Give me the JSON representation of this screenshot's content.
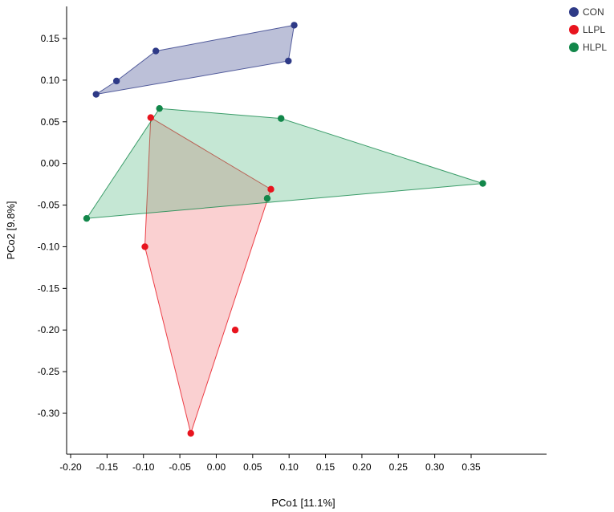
{
  "chart_data": {
    "type": "scatter",
    "xlabel": "PCo1 [11.1%]",
    "ylabel": "PCo2 [9.8%]",
    "xlim": [
      -0.205,
      0.395
    ],
    "ylim": [
      -0.348,
      0.19
    ],
    "x_ticks": [
      -0.2,
      -0.15,
      -0.1,
      -0.05,
      0.0,
      0.05,
      0.1,
      0.15,
      0.2,
      0.25,
      0.3,
      0.35
    ],
    "x_tick_labels": [
      "-0.20",
      "-0.15",
      "-0.10",
      "-0.05",
      "0.00",
      "0.05",
      "0.10",
      "0.15",
      "0.20",
      "0.25",
      "0.30",
      "0.35"
    ],
    "y_ticks": [
      0.15,
      0.1,
      0.05,
      0.0,
      -0.05,
      -0.1,
      -0.15,
      -0.2,
      -0.25,
      -0.3
    ],
    "y_tick_labels": [
      "0.15",
      "0.10",
      "0.05",
      "0.00",
      "-0.05",
      "-0.10",
      "-0.15",
      "-0.20",
      "-0.25",
      "-0.30"
    ],
    "grid": false,
    "legend_position": "top-right",
    "hull_polygons": true,
    "series": [
      {
        "name": "CON",
        "color": "#2e3a87",
        "fill": "#2e3a87",
        "points": [
          [
            -0.165,
            0.083
          ],
          [
            -0.137,
            0.099
          ],
          [
            -0.083,
            0.135
          ],
          [
            0.107,
            0.166
          ],
          [
            0.099,
            0.123
          ]
        ],
        "hull": [
          [
            -0.165,
            0.083
          ],
          [
            -0.137,
            0.099
          ],
          [
            -0.083,
            0.135
          ],
          [
            0.107,
            0.166
          ],
          [
            0.099,
            0.123
          ]
        ]
      },
      {
        "name": "LLPL",
        "color": "#e8141e",
        "fill": "#f06c70",
        "points": [
          [
            -0.09,
            0.055
          ],
          [
            0.075,
            -0.031
          ],
          [
            -0.098,
            -0.1
          ],
          [
            0.026,
            -0.2
          ],
          [
            -0.035,
            -0.324
          ]
        ],
        "hull": [
          [
            -0.09,
            0.055
          ],
          [
            0.075,
            -0.031
          ],
          [
            -0.035,
            -0.324
          ],
          [
            -0.098,
            -0.1
          ]
        ]
      },
      {
        "name": "HLPL",
        "color": "#12874a",
        "fill": "#4bb37a",
        "points": [
          [
            -0.078,
            0.066
          ],
          [
            0.089,
            0.054
          ],
          [
            0.366,
            -0.024
          ],
          [
            0.07,
            -0.042
          ],
          [
            -0.178,
            -0.066
          ]
        ],
        "hull": [
          [
            -0.078,
            0.066
          ],
          [
            0.089,
            0.054
          ],
          [
            0.366,
            -0.024
          ],
          [
            -0.178,
            -0.066
          ]
        ]
      }
    ]
  }
}
